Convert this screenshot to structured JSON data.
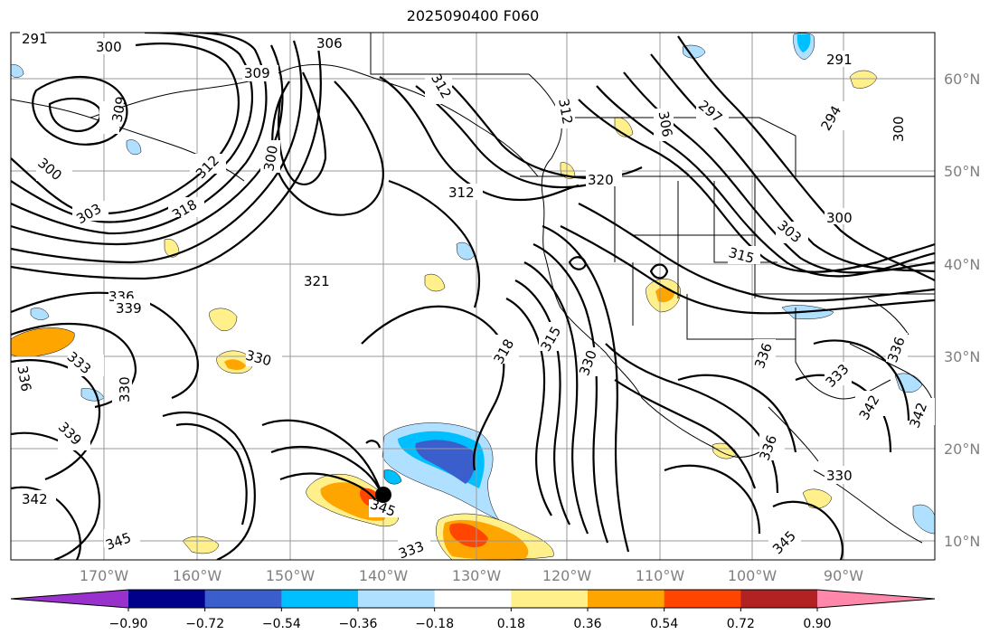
{
  "title": "2025090400 F060",
  "lat_labels": [
    "60°N",
    "50°N",
    "40°N",
    "30°N",
    "20°N",
    "10°N"
  ],
  "lon_labels": [
    "170°W",
    "160°W",
    "150°W",
    "140°W",
    "130°W",
    "120°W",
    "110°W",
    "100°W",
    "90°W"
  ],
  "colorbar": {
    "tick_labels": [
      "−0.90",
      "−0.72",
      "−0.54",
      "−0.36",
      "−0.18",
      "0.18",
      "0.36",
      "0.54",
      "0.72",
      "0.90"
    ],
    "colors": [
      "#9932cc",
      "#00008b",
      "#3a5fcd",
      "#00bfff",
      "#b0e0ff",
      "#ffffff",
      "#fff08c",
      "#ffa500",
      "#ff4500",
      "#b22222",
      "#ff88aa"
    ]
  },
  "contour_labels": [
    {
      "text": "291"
    },
    {
      "text": "300"
    },
    {
      "text": "306"
    },
    {
      "text": "309"
    },
    {
      "text": "309"
    },
    {
      "text": "300"
    },
    {
      "text": "303"
    },
    {
      "text": "312"
    },
    {
      "text": "318"
    },
    {
      "text": "300"
    },
    {
      "text": "312"
    },
    {
      "text": "312"
    },
    {
      "text": "312"
    },
    {
      "text": "320"
    },
    {
      "text": "306"
    },
    {
      "text": "297"
    },
    {
      "text": "294"
    },
    {
      "text": "291"
    },
    {
      "text": "300"
    },
    {
      "text": "300"
    },
    {
      "text": "303"
    },
    {
      "text": "315"
    },
    {
      "text": "321"
    },
    {
      "text": "336"
    },
    {
      "text": "339"
    },
    {
      "text": "330"
    },
    {
      "text": "333"
    },
    {
      "text": "336"
    },
    {
      "text": "330"
    },
    {
      "text": "339"
    },
    {
      "text": "342"
    },
    {
      "text": "342"
    },
    {
      "text": "345"
    },
    {
      "text": "345"
    },
    {
      "text": "315"
    },
    {
      "text": "318"
    },
    {
      "text": "330"
    },
    {
      "text": "336"
    },
    {
      "text": "336"
    },
    {
      "text": "342"
    },
    {
      "text": "333"
    },
    {
      "text": "336"
    },
    {
      "text": "330"
    },
    {
      "text": "345"
    },
    {
      "text": "333"
    }
  ],
  "marker": {
    "name": "storm-center"
  }
}
